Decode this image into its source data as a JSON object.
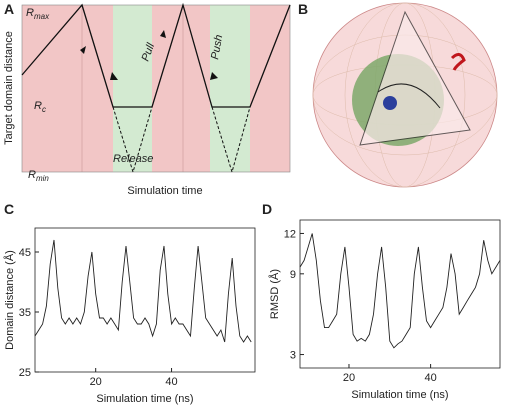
{
  "panel_labels": [
    "A",
    "B",
    "C",
    "D"
  ],
  "schematic": {
    "y_label": "Target domain distance",
    "x_label": "Simulation time",
    "r_max": {
      "symbol": "R",
      "subscript": "max"
    },
    "r_c": {
      "symbol": "R",
      "subscript": "c"
    },
    "r_min": {
      "symbol": "R",
      "subscript": "min"
    },
    "pull": "Pull",
    "push": "Push",
    "release": "Release"
  },
  "chart_data": [
    {
      "type": "line",
      "x_label": "Simulation time (ns)",
      "y_label": "Domain distance (Å)",
      "xlim": [
        4,
        62
      ],
      "xticks": [
        20,
        40
      ],
      "ylim": [
        25,
        49
      ],
      "yticks": [
        25,
        35,
        45
      ],
      "x": [
        4,
        5,
        6,
        7,
        8,
        9,
        10,
        11,
        12,
        13,
        14,
        15,
        16,
        17,
        18,
        19,
        20,
        21,
        22,
        23,
        24,
        25,
        26,
        27,
        28,
        29,
        30,
        31,
        32,
        33,
        34,
        35,
        36,
        37,
        38,
        39,
        40,
        41,
        42,
        43,
        44,
        45,
        46,
        47,
        48,
        49,
        50,
        51,
        52,
        53,
        54,
        55,
        56,
        57,
        58,
        59,
        60,
        61
      ],
      "values": [
        31,
        32,
        33,
        36,
        43,
        47,
        39,
        34,
        33,
        34,
        33,
        34,
        33,
        35,
        41,
        45,
        38,
        34,
        34,
        33,
        34,
        33,
        32,
        40,
        46,
        40,
        34,
        33,
        33,
        34,
        33,
        31,
        33,
        42,
        46,
        38,
        33,
        34,
        33,
        33,
        32,
        31,
        39,
        46,
        40,
        34,
        33,
        32,
        31,
        32,
        30,
        38,
        44,
        36,
        31,
        30,
        31,
        30
      ],
      "color": "#222222"
    },
    {
      "type": "line",
      "x_label": "Simulation time (ns)",
      "y_label": "RMSD (Å)",
      "xlim": [
        8,
        57
      ],
      "xticks": [
        20,
        40
      ],
      "ylim": [
        2,
        13
      ],
      "yticks": [
        3,
        9,
        12
      ],
      "x": [
        8,
        9,
        10,
        11,
        12,
        13,
        14,
        15,
        16,
        17,
        18,
        19,
        20,
        21,
        22,
        23,
        24,
        25,
        26,
        27,
        28,
        29,
        30,
        31,
        32,
        33,
        34,
        35,
        36,
        37,
        38,
        39,
        40,
        41,
        42,
        43,
        44,
        45,
        46,
        47,
        48,
        49,
        50,
        51,
        52,
        53,
        54,
        55,
        56,
        57
      ],
      "values": [
        9.5,
        10,
        11,
        12,
        10,
        7,
        5,
        5,
        5.5,
        6,
        9,
        11,
        8,
        4.5,
        4,
        4.2,
        4,
        4.5,
        6,
        9,
        11,
        8,
        4,
        3.5,
        3.8,
        4,
        4.5,
        5,
        9,
        11,
        8,
        5.5,
        5,
        5.5,
        6,
        6.5,
        8,
        10.5,
        9,
        6,
        6.5,
        7,
        7.5,
        8,
        9,
        11.5,
        10,
        9,
        9.5,
        10
      ],
      "color": "#222222"
    }
  ]
}
